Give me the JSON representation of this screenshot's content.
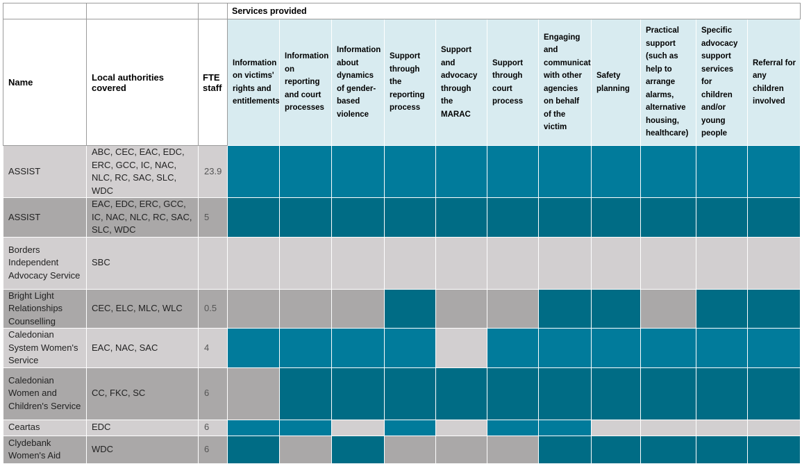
{
  "header": {
    "services_title": "Services provided",
    "name": "Name",
    "local_authorities": "Local authorities covered",
    "fte": "FTE staff"
  },
  "services": [
    "Information on victims' rights and entitlements",
    "Information on reporting and court processes",
    "Information about dynamics of gender-based violence",
    "Support through the reporting process",
    "Support and advocacy through the MARAC",
    "Support through court process",
    "Engaging and communicating with other agencies on behalf of the victim",
    "Safety planning",
    "Practical support (such as help to arrange alarms, alternative housing, healthcare)",
    "Specific advocacy support services for children and/or young people",
    "Referral for any children involved"
  ],
  "colors": {
    "provided_light_row": "#017b9b",
    "provided_dark_row": "#006c85",
    "not_provided_light_row": "#d2cfd0",
    "not_provided_dark_row": "#aaa8a8"
  },
  "rows": [
    {
      "name": "ASSIST",
      "la": "ABC, CEC, EAC, EDC, ERC, GCC, IC, NAC, NLC, RC, SAC, SLC, WDC",
      "fte": "23.9",
      "shade": "light",
      "services": [
        1,
        1,
        1,
        1,
        1,
        1,
        1,
        1,
        1,
        1,
        1
      ]
    },
    {
      "name": "ASSIST",
      "la": "EAC, EDC, ERC, GCC, IC, NAC, NLC, RC, SAC, SLC, WDC",
      "fte": "5",
      "shade": "dark",
      "services": [
        1,
        1,
        1,
        1,
        1,
        1,
        1,
        1,
        1,
        1,
        1
      ]
    },
    {
      "name": "Borders Independent Advocacy Service",
      "la": "SBC",
      "fte": "",
      "shade": "light",
      "services": [
        0,
        0,
        0,
        0,
        0,
        0,
        0,
        0,
        0,
        0,
        0
      ]
    },
    {
      "name": "Bright Light Relationships Counselling",
      "la": "CEC, ELC, MLC, WLC",
      "fte": "0.5",
      "shade": "dark",
      "services": [
        0,
        0,
        0,
        1,
        0,
        0,
        1,
        1,
        0,
        1,
        1
      ]
    },
    {
      "name": "Caledonian System Women's Service",
      "la": "EAC, NAC, SAC",
      "fte": "4",
      "shade": "light",
      "services": [
        1,
        1,
        1,
        1,
        0,
        1,
        1,
        1,
        1,
        1,
        1
      ]
    },
    {
      "name": "Caledonian Women and Children's Service",
      "la": "CC, FKC, SC",
      "fte": "6",
      "shade": "dark",
      "services": [
        0,
        1,
        1,
        1,
        1,
        1,
        1,
        1,
        1,
        1,
        1
      ]
    },
    {
      "name": "Ceartas",
      "la": "EDC",
      "fte": "6",
      "shade": "light",
      "services": [
        1,
        1,
        0,
        1,
        0,
        1,
        1,
        0,
        0,
        0,
        0
      ]
    },
    {
      "name": "Clydebank Women's Aid",
      "la": "WDC",
      "fte": "6",
      "shade": "dark",
      "services": [
        1,
        0,
        1,
        0,
        0,
        0,
        1,
        1,
        1,
        1,
        1
      ]
    }
  ]
}
